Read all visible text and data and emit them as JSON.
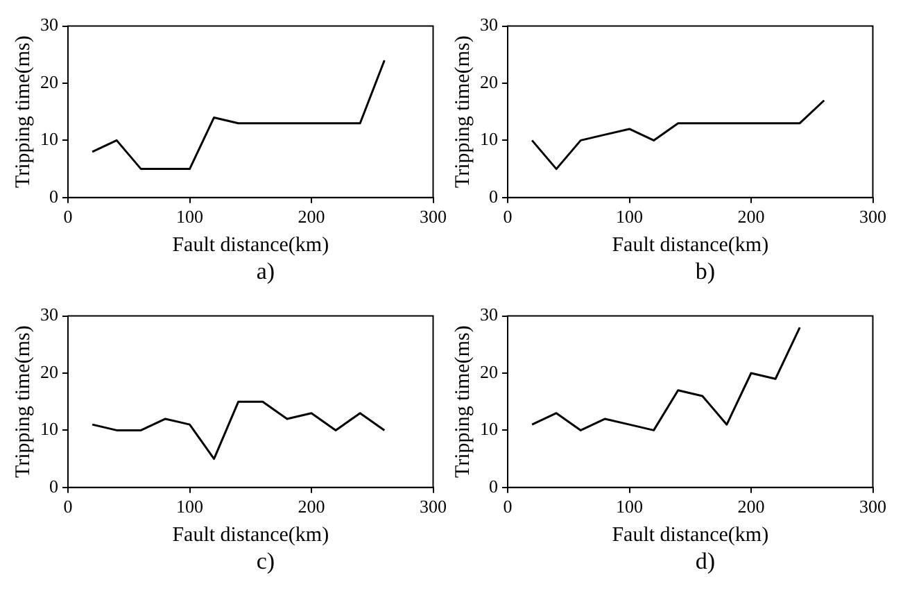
{
  "chart_data": [
    {
      "type": "line",
      "xlabel": "Fault distance(km)",
      "ylabel": "Tripping time(ms)",
      "annotations": [
        "a)"
      ],
      "x": [
        20,
        40,
        60,
        80,
        100,
        120,
        140,
        160,
        180,
        200,
        220,
        240,
        260
      ],
      "series": [
        {
          "color": "#000000",
          "values": [
            8,
            10,
            5,
            5,
            5,
            14,
            13,
            13,
            13,
            13,
            13,
            13,
            24
          ]
        }
      ],
      "xlim": [
        0,
        300
      ],
      "xticks": [
        0,
        100,
        200,
        300
      ],
      "ylim": [
        0,
        30
      ],
      "yticks": [
        0,
        10,
        20,
        30
      ],
      "grid": false,
      "legend": false,
      "marker": "none",
      "line_style": "solid"
    },
    {
      "type": "line",
      "xlabel": "Fault distance(km)",
      "ylabel": "Tripping time(ms)",
      "annotations": [
        "b)"
      ],
      "x": [
        20,
        40,
        60,
        80,
        100,
        120,
        140,
        160,
        180,
        200,
        220,
        240,
        260
      ],
      "series": [
        {
          "color": "#000000",
          "values": [
            10,
            5,
            10,
            11,
            12,
            10,
            13,
            13,
            13,
            13,
            13,
            13,
            17
          ]
        }
      ],
      "xlim": [
        0,
        300
      ],
      "xticks": [
        0,
        100,
        200,
        300
      ],
      "ylim": [
        0,
        30
      ],
      "yticks": [
        0,
        10,
        20,
        30
      ],
      "grid": false,
      "legend": false,
      "marker": "none",
      "line_style": "solid"
    },
    {
      "type": "line",
      "xlabel": "Fault distance(km)",
      "ylabel": "Tripping time(ms)",
      "annotations": [
        "c)"
      ],
      "x": [
        20,
        40,
        60,
        80,
        100,
        120,
        140,
        160,
        180,
        200,
        220,
        240,
        260
      ],
      "series": [
        {
          "color": "#000000",
          "values": [
            11,
            10,
            10,
            12,
            11,
            5,
            15,
            15,
            12,
            13,
            10,
            13,
            10
          ]
        }
      ],
      "xlim": [
        0,
        300
      ],
      "xticks": [
        0,
        100,
        200,
        300
      ],
      "ylim": [
        0,
        30
      ],
      "yticks": [
        0,
        10,
        20,
        30
      ],
      "grid": false,
      "legend": false,
      "marker": "none",
      "line_style": "solid"
    },
    {
      "type": "line",
      "xlabel": "Fault distance(km)",
      "ylabel": "Tripping time(ms)",
      "annotations": [
        "d)"
      ],
      "x": [
        20,
        40,
        60,
        80,
        100,
        120,
        140,
        160,
        180,
        200,
        220,
        240
      ],
      "series": [
        {
          "color": "#000000",
          "values": [
            11,
            13,
            10,
            12,
            11,
            10,
            17,
            16,
            11,
            20,
            19,
            28
          ]
        }
      ],
      "xlim": [
        0,
        300
      ],
      "xticks": [
        0,
        100,
        200,
        300
      ],
      "ylim": [
        0,
        30
      ],
      "yticks": [
        0,
        10,
        20,
        30
      ],
      "grid": false,
      "legend": false,
      "marker": "none",
      "line_style": "solid"
    }
  ]
}
